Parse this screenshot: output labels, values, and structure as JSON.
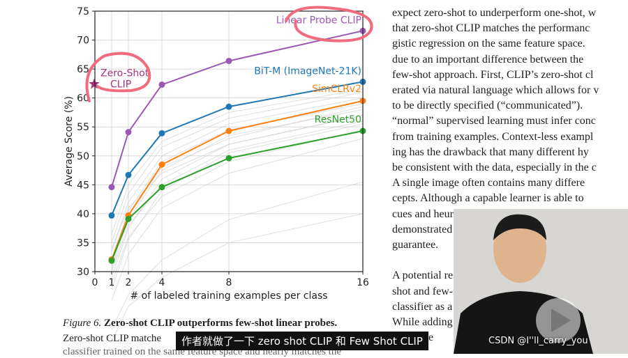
{
  "chart_data": {
    "type": "line",
    "xlabel": "# of labeled training examples per class",
    "ylabel": "Average Score (%)",
    "x_ticks": [
      0,
      1,
      2,
      4,
      8,
      16
    ],
    "y_ticks": [
      30,
      35,
      40,
      45,
      50,
      55,
      60,
      65,
      70,
      75
    ],
    "ylim": [
      30,
      75
    ],
    "grid": true,
    "x": [
      1,
      2,
      4,
      8,
      16
    ],
    "series": [
      {
        "name": "Linear Probe CLIP",
        "color": "#9b59b6",
        "values": [
          44.6,
          54.1,
          62.3,
          66.4,
          71.6
        ]
      },
      {
        "name": "BiT-M (ImageNet-21K)",
        "color": "#1f77b4",
        "values": [
          39.7,
          46.7,
          53.9,
          58.5,
          62.8
        ]
      },
      {
        "name": "SimCLRv2",
        "color": "#ff7f0e",
        "values": [
          32.1,
          39.7,
          48.5,
          54.3,
          59.5
        ]
      },
      {
        "name": "ResNet50",
        "color": "#2ca02c",
        "values": [
          31.9,
          39.1,
          44.6,
          49.6,
          54.3
        ]
      }
    ],
    "zero_shot": {
      "label": "Zero-Shot\nCLIP",
      "x": 0,
      "y": 62.4,
      "color": "#a83279"
    },
    "background_series": [
      [
        25.0,
        33.0,
        41.0,
        47.0,
        53.0
      ],
      [
        27.0,
        35.5,
        44.0,
        50.5,
        55.5
      ],
      [
        29.0,
        37.5,
        46.0,
        52.0,
        57.0
      ],
      [
        30.5,
        39.0,
        47.5,
        53.5,
        58.0
      ],
      [
        32.0,
        40.5,
        49.0,
        54.5,
        59.0
      ],
      [
        33.5,
        42.0,
        50.0,
        55.5,
        60.0
      ],
      [
        35.0,
        43.5,
        51.5,
        56.5,
        61.0
      ],
      [
        36.5,
        45.0,
        52.5,
        57.5,
        61.5
      ],
      [
        28.0,
        36.0,
        43.0,
        49.0,
        54.5
      ],
      [
        30.0,
        38.0,
        45.0,
        51.0,
        56.0
      ],
      [
        31.0,
        40.0,
        48.0,
        53.0,
        58.5
      ],
      [
        34.0,
        41.0,
        47.0,
        52.0,
        57.0
      ],
      [
        20.0,
        26.0,
        32.0,
        39.0,
        45.5
      ],
      [
        18.0,
        24.0,
        29.0,
        35.0,
        40.0
      ]
    ]
  },
  "paper": {
    "lines": [
      "expect zero-shot to underperform one-shot, w",
      "that zero-shot CLIP matches the performanc",
      "gistic regression on the same feature space.",
      "due to an important difference between the",
      "few-shot approach. First, CLIP’s zero-shot cl",
      "erated via natural language which allows for v",
      "to be directly specified (“communicated”).",
      "“normal” supervised learning must infer conc",
      "from training examples. Context-less exampl",
      "ing has the drawback that many different hy",
      "be consistent with the data, especially in the c",
      "A single image often contains many differe",
      "cepts. Although a capable learner is able to",
      "cues and heuristics, such as assuming that the",
      "demonstrated is the primary object in an imag",
      "guarantee.",
      "",
      "A potential resolution of this discrepancy b",
      "shot and few-shot performance is to use CLI",
      "classifier as a prior for the weights of the few-",
      "While adding",
      "that hype"
    ],
    "caption_label": "Figure 6.",
    "caption_bold": "Zero-shot CLIP outperforms few-shot linear probes.",
    "caption_line2": "Zero-shot CLIP matche",
    "caption_line3": "classifier trained on the same feature space and nearly matches the"
  },
  "video": {
    "subtitle": "作者就做了一下 zero shot CLIP 和 Few Shot CLIP",
    "watermark": "CSDN @I''ll_carry_you"
  },
  "colors": {
    "annotation_circle": "#f06b7e",
    "grid": "#d9d9d9"
  }
}
